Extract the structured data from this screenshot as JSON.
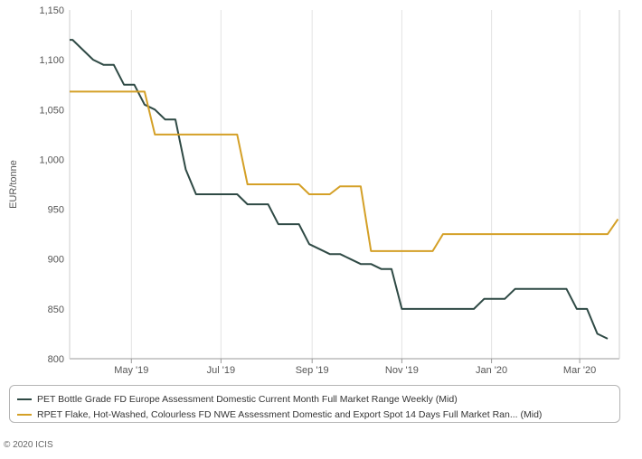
{
  "chart_data": {
    "type": "line",
    "ylabel": "EUR/tonne",
    "ylim": [
      800,
      1150
    ],
    "yticks": [
      800,
      850,
      900,
      950,
      1000,
      1050,
      1100,
      1150
    ],
    "ytick_labels": [
      "800",
      "850",
      "900",
      "950",
      "1,000",
      "1,050",
      "1,100",
      "1,150"
    ],
    "xlim": [
      "2019-03-20",
      "2020-03-28"
    ],
    "xticks": [
      "2019-05-01",
      "2019-07-01",
      "2019-09-01",
      "2019-11-01",
      "2020-01-01",
      "2020-03-01"
    ],
    "xtick_labels": [
      "May '19",
      "Jul '19",
      "Sep '19",
      "Nov '19",
      "Jan '20",
      "Mar '20"
    ],
    "grid": "vertical",
    "legend_position": "bottom",
    "series": [
      {
        "name": "PET Bottle Grade FD Europe Assessment Domestic Current Month Full Market Range Weekly (Mid)",
        "color": "#2f4a45",
        "x": [
          "2019-03-20",
          "2019-03-22",
          "2019-03-29",
          "2019-04-05",
          "2019-04-12",
          "2019-04-19",
          "2019-04-26",
          "2019-05-03",
          "2019-05-10",
          "2019-05-17",
          "2019-05-24",
          "2019-05-31",
          "2019-06-07",
          "2019-06-14",
          "2019-06-21",
          "2019-06-28",
          "2019-07-05",
          "2019-07-12",
          "2019-07-19",
          "2019-07-26",
          "2019-08-02",
          "2019-08-09",
          "2019-08-16",
          "2019-08-23",
          "2019-08-30",
          "2019-09-06",
          "2019-09-13",
          "2019-09-20",
          "2019-09-27",
          "2019-10-04",
          "2019-10-11",
          "2019-10-18",
          "2019-10-25",
          "2019-11-01",
          "2019-11-08",
          "2019-11-15",
          "2019-11-22",
          "2019-11-29",
          "2019-12-06",
          "2019-12-13",
          "2019-12-20",
          "2019-12-27",
          "2020-01-03",
          "2020-01-10",
          "2020-01-17",
          "2020-01-24",
          "2020-01-31",
          "2020-02-07",
          "2020-02-14",
          "2020-02-21",
          "2020-02-28",
          "2020-03-06",
          "2020-03-13",
          "2020-03-20"
        ],
        "y": [
          1120,
          1120,
          1110,
          1100,
          1095,
          1095,
          1075,
          1075,
          1055,
          1050,
          1040,
          1040,
          990,
          965,
          965,
          965,
          965,
          965,
          955,
          955,
          955,
          935,
          935,
          935,
          915,
          910,
          905,
          905,
          900,
          895,
          895,
          890,
          890,
          850,
          850,
          850,
          850,
          850,
          850,
          850,
          850,
          860,
          860,
          860,
          870,
          870,
          870,
          870,
          870,
          870,
          850,
          850,
          825,
          820
        ]
      },
      {
        "name": "RPET Flake, Hot-Washed, Colourless FD NWE Assessment Domestic and Export Spot 14 Days Full Market Ran... (Mid)",
        "color": "#d4a027",
        "x": [
          "2019-03-20",
          "2019-03-29",
          "2019-04-05",
          "2019-04-12",
          "2019-04-19",
          "2019-04-26",
          "2019-05-03",
          "2019-05-10",
          "2019-05-17",
          "2019-05-24",
          "2019-05-31",
          "2019-06-07",
          "2019-06-14",
          "2019-06-21",
          "2019-06-28",
          "2019-07-05",
          "2019-07-12",
          "2019-07-19",
          "2019-07-26",
          "2019-08-02",
          "2019-08-09",
          "2019-08-16",
          "2019-08-23",
          "2019-08-30",
          "2019-09-06",
          "2019-09-13",
          "2019-09-20",
          "2019-09-27",
          "2019-10-04",
          "2019-10-11",
          "2019-10-18",
          "2019-10-25",
          "2019-11-01",
          "2019-11-08",
          "2019-11-15",
          "2019-11-22",
          "2019-11-29",
          "2019-12-06",
          "2019-12-13",
          "2019-12-20",
          "2019-12-27",
          "2020-01-03",
          "2020-01-10",
          "2020-01-17",
          "2020-01-24",
          "2020-01-31",
          "2020-02-07",
          "2020-02-14",
          "2020-02-21",
          "2020-02-28",
          "2020-03-06",
          "2020-03-13",
          "2020-03-20",
          "2020-03-27"
        ],
        "y": [
          1068,
          1068,
          1068,
          1068,
          1068,
          1068,
          1068,
          1068,
          1025,
          1025,
          1025,
          1025,
          1025,
          1025,
          1025,
          1025,
          1025,
          975,
          975,
          975,
          975,
          975,
          975,
          965,
          965,
          965,
          973,
          973,
          973,
          908,
          908,
          908,
          908,
          908,
          908,
          908,
          925,
          925,
          925,
          925,
          925,
          925,
          925,
          925,
          925,
          925,
          925,
          925,
          925,
          925,
          925,
          925,
          925,
          940
        ]
      }
    ]
  },
  "footer": {
    "copyright": "© 2020 ICIS"
  }
}
